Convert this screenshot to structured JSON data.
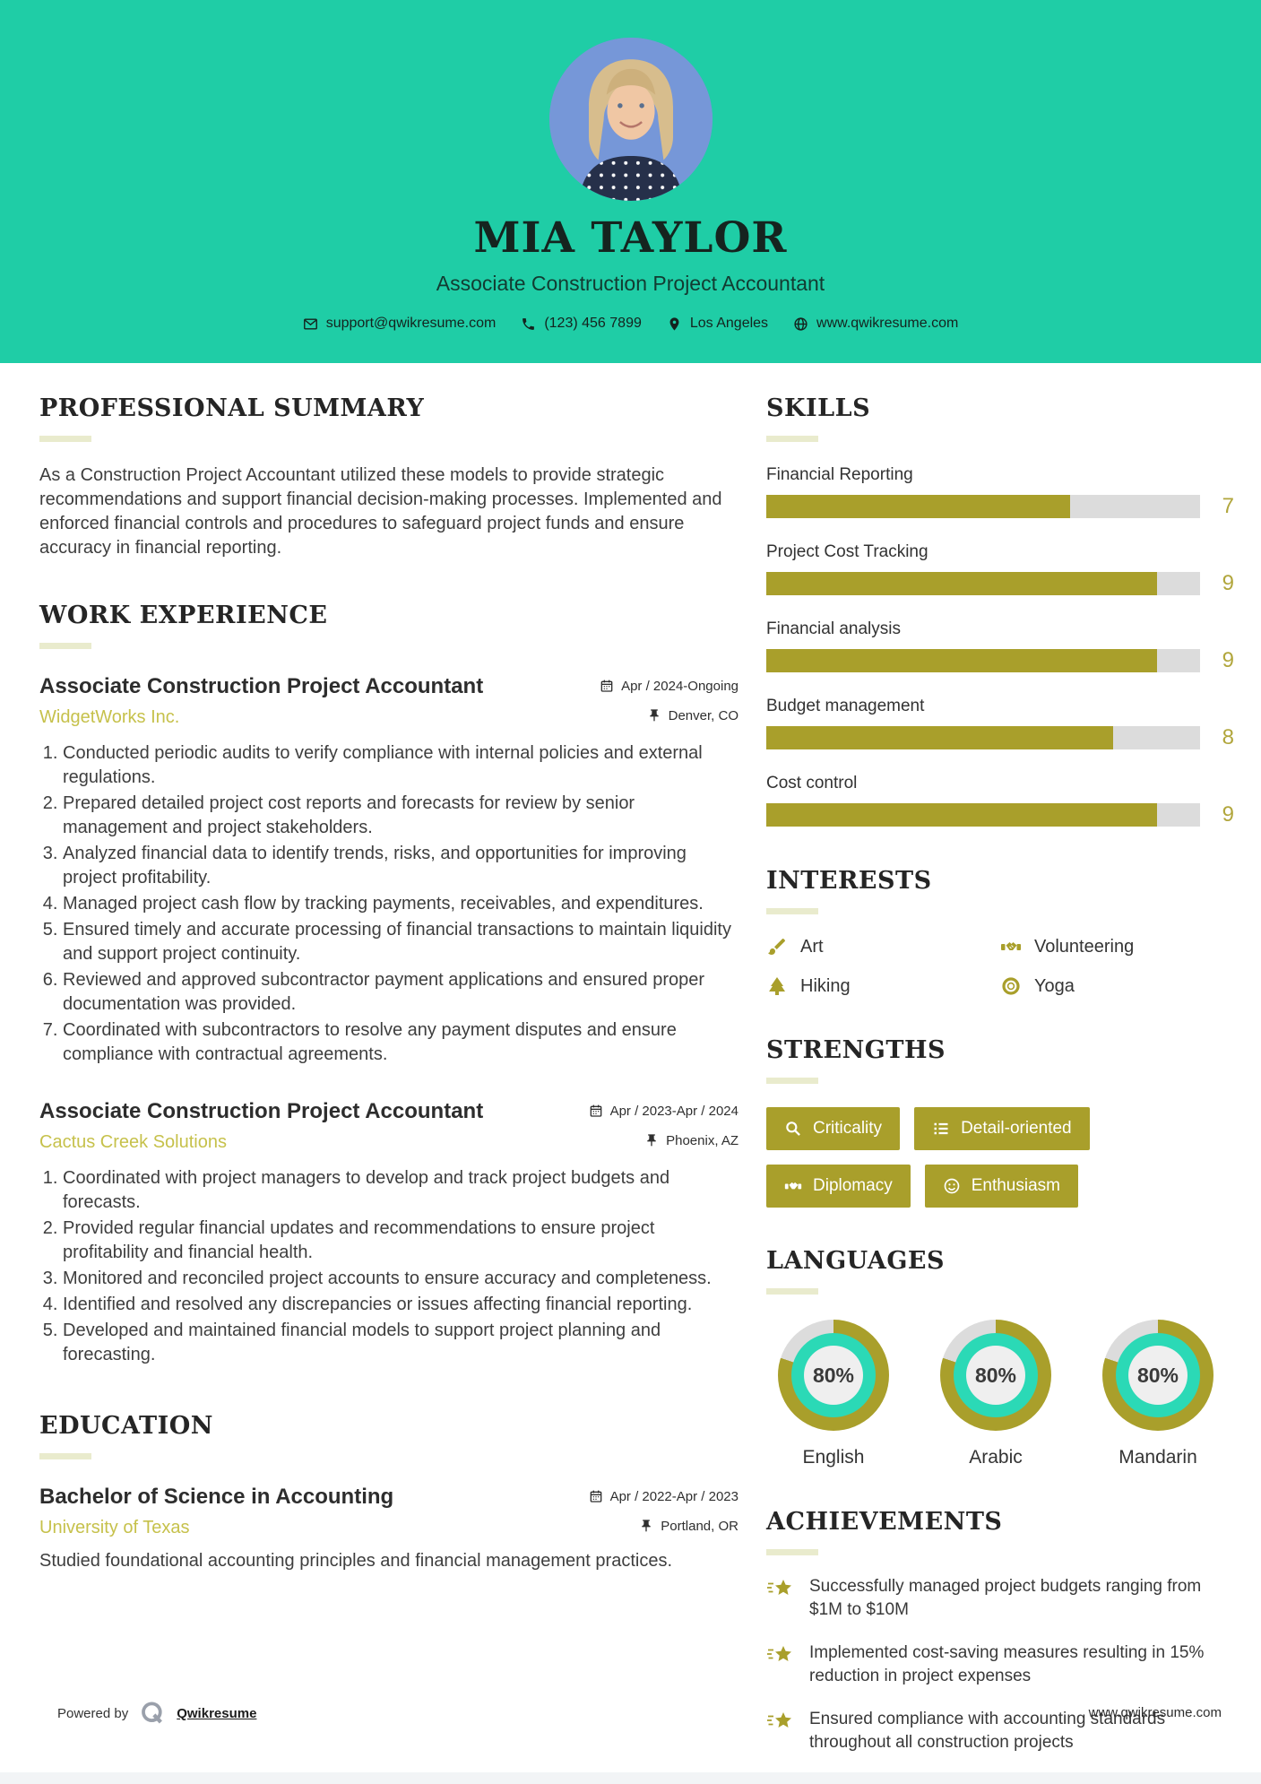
{
  "colors": {
    "teal_header": "#1fcda6",
    "olive_accent": "#a99f2b",
    "company_yellow": "#c6c14b",
    "bar_track": "#dcdcdc",
    "donut_teal": "#2bd9b6",
    "heading_underline": "#e9ebcd"
  },
  "header": {
    "name": "MIA TAYLOR",
    "title": "Associate Construction Project Accountant",
    "contact": {
      "email": "support@qwikresume.com",
      "phone": "(123) 456 7899",
      "location": "Los Angeles",
      "website": "www.qwikresume.com"
    }
  },
  "sections": {
    "summary": {
      "heading": "PROFESSIONAL SUMMARY",
      "text": "As a Construction Project Accountant utilized these models to provide strategic recommendations and support financial decision-making processes. Implemented and enforced financial controls and procedures to safeguard project funds and ensure accuracy in financial reporting."
    },
    "work": {
      "heading": "WORK EXPERIENCE",
      "jobs": [
        {
          "title": "Associate Construction Project Accountant",
          "dates": "Apr / 2024-Ongoing",
          "company": "WidgetWorks Inc.",
          "location": "Denver, CO",
          "items": [
            "Conducted periodic audits to verify compliance with internal policies and external regulations.",
            "Prepared detailed project cost reports and forecasts for review by senior management and project stakeholders.",
            "Analyzed financial data to identify trends, risks, and opportunities for improving project profitability.",
            "Managed project cash flow by tracking payments, receivables, and expenditures.",
            "Ensured timely and accurate processing of financial transactions to maintain liquidity and support project continuity.",
            "Reviewed and approved subcontractor payment applications and ensured proper documentation was provided.",
            "Coordinated with subcontractors to resolve any payment disputes and ensure compliance with contractual agreements."
          ]
        },
        {
          "title": "Associate Construction Project Accountant",
          "dates": "Apr / 2023-Apr / 2024",
          "company": "Cactus Creek Solutions",
          "location": "Phoenix, AZ",
          "items": [
            "Coordinated with project managers to develop and track project budgets and forecasts.",
            "Provided regular financial updates and recommendations to ensure project profitability and financial health.",
            "Monitored and reconciled project accounts to ensure accuracy and completeness.",
            "Identified and resolved any discrepancies or issues affecting financial reporting.",
            "Developed and maintained financial models to support project planning and forecasting."
          ]
        }
      ]
    },
    "education": {
      "heading": "EDUCATION",
      "degree": "Bachelor of Science in Accounting",
      "dates": "Apr / 2022-Apr / 2023",
      "school": "University of Texas",
      "location": "Portland, OR",
      "description": "Studied foundational accounting principles and financial management practices."
    },
    "skills": {
      "heading": "SKILLS",
      "max": 10,
      "items": [
        {
          "name": "Financial Reporting",
          "score": 7
        },
        {
          "name": "Project Cost Tracking",
          "score": 9
        },
        {
          "name": "Financial analysis",
          "score": 9
        },
        {
          "name": "Budget management",
          "score": 8
        },
        {
          "name": "Cost control",
          "score": 9
        }
      ]
    },
    "interests": {
      "heading": "INTERESTS",
      "items": [
        {
          "icon": "paintbrush-icon",
          "label": "Art"
        },
        {
          "icon": "handshake-icon",
          "label": "Volunteering"
        },
        {
          "icon": "pine-tree-icon",
          "label": "Hiking"
        },
        {
          "icon": "ring-icon",
          "label": "Yoga"
        }
      ]
    },
    "strengths": {
      "heading": "STRENGTHS",
      "items": [
        {
          "icon": "search-icon",
          "label": "Criticality"
        },
        {
          "icon": "list-icon",
          "label": "Detail-oriented"
        },
        {
          "icon": "handshake-icon",
          "label": "Diplomacy"
        },
        {
          "icon": "smiley-icon",
          "label": "Enthusiasm"
        }
      ]
    },
    "languages": {
      "heading": "LANGUAGES",
      "items": [
        {
          "name": "English",
          "percent": 80,
          "percent_label": "80%"
        },
        {
          "name": "Arabic",
          "percent": 80,
          "percent_label": "80%"
        },
        {
          "name": "Mandarin",
          "percent": 80,
          "percent_label": "80%"
        }
      ]
    },
    "achievements": {
      "heading": "ACHIEVEMENTS",
      "items": [
        "Successfully managed project budgets ranging from $1M to $10M",
        "Implemented cost-saving measures resulting in 15% reduction in project expenses",
        "Ensured compliance with accounting standards throughout all construction projects"
      ]
    }
  },
  "footer": {
    "powered_by": "Powered by",
    "brand": "Qwikresume",
    "watermark": "www.qwikresume.com"
  }
}
